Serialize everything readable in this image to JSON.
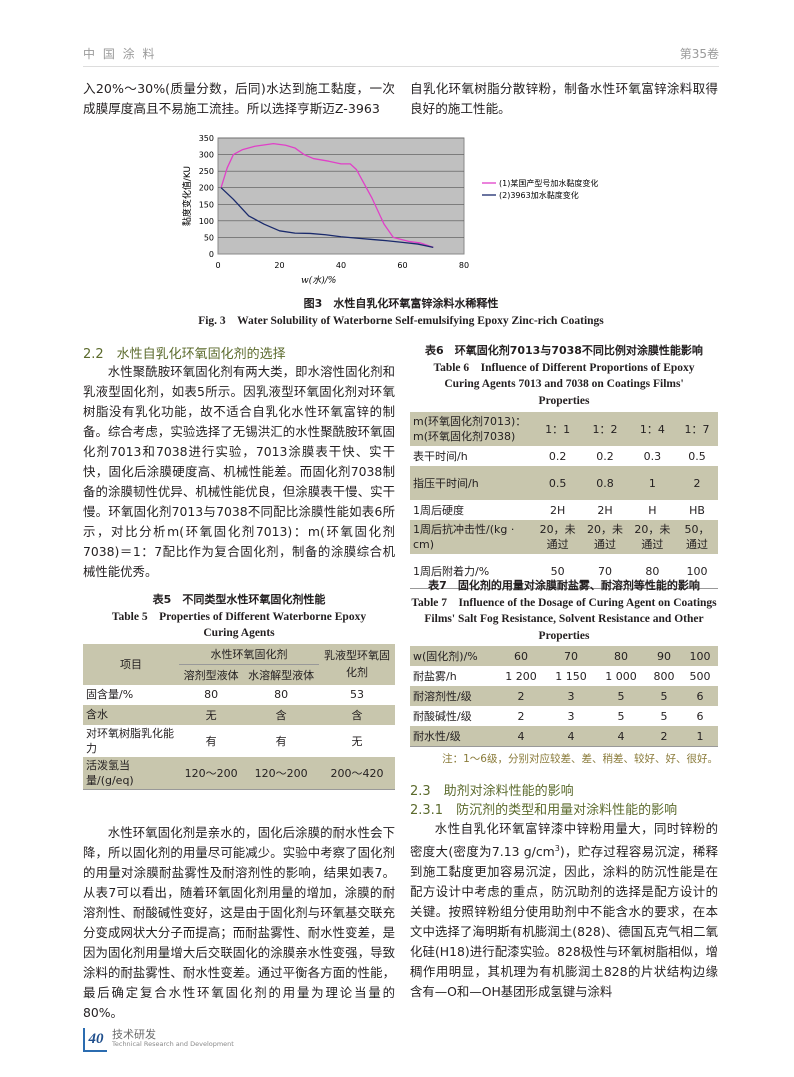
{
  "header": {
    "journal": "中 国 涂 料",
    "volume": "第35卷"
  },
  "top_left": "入20%～30%(质量分数，后同)水达到施工黏度，一次成膜厚度高且不易施工流挂。所以选择亨斯迈Z-3963",
  "top_right": "自乳化环氧树脂分散锌粉，制备水性环氧富锌涂料取得良好的施工性能。",
  "figure": {
    "caption_zh": "图3　水性自乳化环氧富锌涂料水稀释性",
    "caption_en": "Fig. 3　Water Solubility of Waterborne Self-emulsifying Epoxy Zinc-rich Coatings"
  },
  "chart_data": {
    "type": "line",
    "xlabel": "w(水)/%",
    "ylabel": "黏度变化值/KU",
    "xlim": [
      0,
      80
    ],
    "ylim": [
      0,
      350
    ],
    "xticks": [
      "0",
      "20",
      "40",
      "60",
      "80"
    ],
    "yticks": [
      "0",
      "50",
      "100",
      "150",
      "200",
      "250",
      "300",
      "350"
    ],
    "grid": "horizontal",
    "legend": "right",
    "plot_bg": "#c0c0c0",
    "series": [
      {
        "name": "(1)某国产型号加水黏度变化",
        "color": "#e040c8",
        "x": [
          1,
          3,
          5,
          8,
          12,
          18,
          22,
          25,
          28,
          31,
          36,
          40,
          43,
          45,
          50,
          54,
          57,
          62,
          66,
          70
        ],
        "y": [
          200,
          260,
          300,
          315,
          325,
          333,
          328,
          320,
          300,
          288,
          280,
          272,
          272,
          255,
          170,
          90,
          50,
          38,
          33,
          20
        ]
      },
      {
        "name": "(2)3963加水黏度变化",
        "color": "#1a2a6c",
        "x": [
          1,
          5,
          10,
          15,
          20,
          25,
          30,
          35,
          40,
          45,
          50,
          55,
          60,
          65,
          70
        ],
        "y": [
          200,
          165,
          115,
          90,
          70,
          63,
          62,
          58,
          52,
          48,
          44,
          40,
          35,
          30,
          20
        ]
      }
    ]
  },
  "sec22": {
    "title": "2.2　水性自乳化环氧固化剂的选择",
    "body": "水性聚酰胺环氧固化剂有两大类，即水溶性固化剂和乳液型固化剂，如表5所示。因乳液型环氧固化剂对环氧树脂没有乳化功能，故不适合自乳化水性环氧富锌的制备。综合考虑，实验选择了无锡洪汇的水性聚酰胺环氧固化剂7013和7038进行实验，7013涂膜表干快、实干快，固化后涂膜硬度高、机械性能差。而固化剂7038制备的涂膜韧性优异、机械性能优良，但涂膜表干慢、实干慢。环氧固化剂7013与7038不同配比涂膜性能如表6所示，对比分析m(环氧固化剂7013)：m(环氧固化剂7038)＝1：7配比作为复合固化剂，制备的涂膜综合机械性能优秀。"
  },
  "table5": {
    "caption_zh": "表5　不同类型水性环氧固化剂性能",
    "caption_en": "Table 5　Properties of Different Waterborne Epoxy Curing Agents",
    "h_item": "项目",
    "h_group": "水性环氧固化剂",
    "h_sub1": "溶剂型液体",
    "h_sub2": "水溶解型液体",
    "h_emul": "乳液型环氧固化剂",
    "rows": [
      [
        "固含量/%",
        "80",
        "80",
        "53"
      ],
      [
        "含水",
        "无",
        "含",
        "含"
      ],
      [
        "对环氧树脂乳化能力",
        "有",
        "有",
        "无"
      ],
      [
        "活泼氢当量/(g/eq)",
        "120～200",
        "120～200",
        "200～420"
      ]
    ]
  },
  "para_left2": "水性环氧固化剂是亲水的，固化后涂膜的耐水性会下降，所以固化剂的用量尽可能减少。实验中考察了固化剂的用量对涂膜耐盐雾性及耐溶剂性的影响，结果如表7。从表7可以看出，随着环氧固化剂用量的增加，涂膜的耐溶剂性、耐酸碱性变好，这是由于固化剂与环氧基交联充分变成网状大分子而提高；而耐盐雾性、耐水性变差，是因为固化剂用量增大后交联固化的涂膜亲水性变强，导致涂料的耐盐雾性、耐水性变差。通过平衡各方面的性能，最后确定复合水性环氧固化剂的用量为理论当量的80%。",
  "table6": {
    "caption_zh": "表6　环氧固化剂7013与7038不同比例对涂膜性能影响",
    "caption_en": "Table 6　Influence of Different Proportions of Epoxy Curing Agents 7013 and 7038 on Coatings Films' Properties",
    "header": [
      "m(环氧固化剂7013)：m(环氧固化剂7038)",
      "1：1",
      "1：2",
      "1：4",
      "1：7"
    ],
    "rows": [
      [
        "表干时间/h",
        "0.2",
        "0.2",
        "0.3",
        "0.5"
      ],
      [
        "指压干时间/h",
        "0.5",
        "0.8",
        "1",
        "2"
      ],
      [
        "1周后硬度",
        "2H",
        "2H",
        "H",
        "HB"
      ],
      [
        "1周后抗冲击性/(kg · cm)",
        "20，未通过",
        "20，未通过",
        "20，未通过",
        "50，通过"
      ],
      [
        "1周后附着力/%",
        "50",
        "70",
        "80",
        "100"
      ]
    ]
  },
  "table7": {
    "caption_zh": "表7　固化剂的用量对涂膜耐盐雾、耐溶剂等性能的影响",
    "caption_en": "Table 7　Influence of the Dosage of Curing Agent on Coatings Films' Salt Fog Resistance, Solvent Resistance and Other Properties",
    "header": [
      "w(固化剂)/%",
      "60",
      "70",
      "80",
      "90",
      "100"
    ],
    "rows": [
      [
        "耐盐雾/h",
        "1 200",
        "1 150",
        "1 000",
        "800",
        "500"
      ],
      [
        "耐溶剂性/级",
        "2",
        "3",
        "5",
        "5",
        "6"
      ],
      [
        "耐酸碱性/级",
        "2",
        "3",
        "5",
        "5",
        "6"
      ],
      [
        "耐水性/级",
        "4",
        "4",
        "4",
        "2",
        "1"
      ]
    ],
    "note": "注：1～6级，分别对应较差、差、稍差、较好、好、很好。"
  },
  "sec23": {
    "title": "2.3　助剂对涂料性能的影响",
    "sub": "2.3.1　防沉剂的类型和用量对涂料性能的影响",
    "body_a": "水性自乳化环氧富锌漆中锌粉用量大，同时锌粉的密度大(密度为7.13 g/cm",
    "sup": "3",
    "body_b": ")，贮存过程容易沉淀，稀释到施工黏度更加容易沉淀，因此，涂料的防沉性能是在配方设计中考虑的重点，防沉助剂的选择是配方设计的关键。按照锌粉组分使用助剂中不能含水的要求，在本文中选择了海明斯有机膨润土(828)、德国瓦克气相二氧化硅(H18)进行配漆实验。828极性与环氧树脂相似，增稠作用明显，其机理为有机膨润土828的片状结构边缘含有—O和—OH基团形成氢键与涂料"
  },
  "footer": {
    "page": "40",
    "section_zh": "技术研发",
    "section_en": "Technical Research and Development"
  }
}
